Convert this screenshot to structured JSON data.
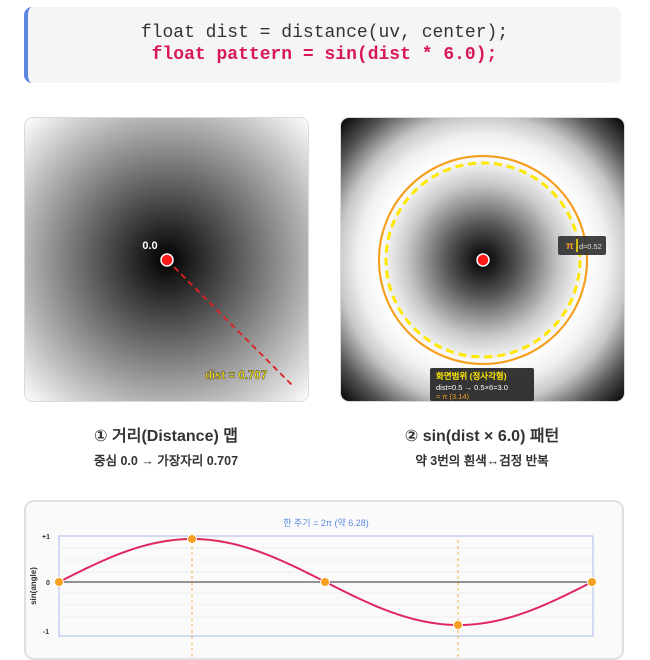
{
  "code": {
    "line1": "float dist = distance(uv, center);",
    "line2": "float pattern = sin(dist * 6.0);"
  },
  "panel_left": {
    "center_label": "0.0",
    "edge_label": "dist = 0.707",
    "caption_title": "① 거리(Distance) 맵",
    "caption_sub": "중심 0.0 → 가장자리 0.707"
  },
  "panel_right": {
    "pi_label": "π",
    "pi_value": "d≈0.52",
    "info_title": "화면범위 (정사각형)",
    "info_line1": "dist=0.5 → 0.5×6=3.0",
    "info_line2": "≈ π (3.14)",
    "caption_title": "② sin(dist × 6.0) 패턴",
    "caption_sub": "약 3번의 흰색↔검정 반복"
  },
  "wave": {
    "title": "한 주기 = 2π (약 6.28)",
    "ylabel": "sin(angle)",
    "ytick_top": "+1",
    "ytick_mid": "0",
    "ytick_bottom": "-1"
  },
  "colors": {
    "accent_blue": "#5a86e0",
    "code_highlight": "#d8185a",
    "orange": "#f5a020",
    "yellow": "#ffe800",
    "red_dot": "#ff1a1a",
    "wave_line": "#e0285e"
  }
}
